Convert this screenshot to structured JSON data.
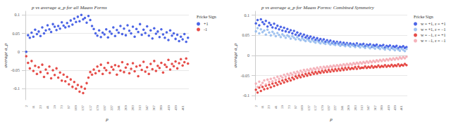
{
  "chart_data": [
    {
      "type": "scatter",
      "title": "p vs average a_p for all Maass Forms",
      "x_label": "p",
      "y_label": "average a_p",
      "legend_title": "Fricke Sign",
      "legend": "right",
      "grid": true,
      "categories": [
        "2",
        null,
        null,
        null,
        "11",
        null,
        null,
        null,
        "23",
        null,
        null,
        null,
        "41",
        null,
        null,
        null,
        "59",
        null,
        null,
        null,
        "73",
        null,
        null,
        null,
        "97",
        null,
        null,
        null,
        "109",
        null,
        null,
        null,
        "137",
        null,
        null,
        null,
        "157",
        null,
        null,
        null,
        "179",
        null,
        null,
        null,
        "197",
        null,
        null,
        null,
        "227",
        null,
        null,
        null,
        "241",
        null,
        null,
        null,
        "269",
        null,
        null,
        null,
        "283",
        null,
        null,
        null,
        "313",
        null,
        null,
        null,
        "347",
        null,
        null,
        null,
        "367",
        null,
        null,
        null,
        "389",
        null,
        null,
        null,
        "419",
        null,
        null,
        null,
        "439",
        null,
        null,
        null,
        "461",
        null,
        null,
        null
      ],
      "ylim": [
        -0.13,
        0.11
      ],
      "yticks": [
        -0.1,
        -0.05,
        0,
        0.05,
        0.1
      ],
      "series": [
        {
          "name": "+1",
          "color": "#1f3fe0",
          "values": [
            0.0,
            0.045,
            0.038,
            0.052,
            0.041,
            0.06,
            0.048,
            0.055,
            0.043,
            0.066,
            0.05,
            0.058,
            0.072,
            0.061,
            0.054,
            0.075,
            0.068,
            0.059,
            0.07,
            0.063,
            0.08,
            0.071,
            0.066,
            0.078,
            0.069,
            0.085,
            0.074,
            0.09,
            0.081,
            0.095,
            0.083,
            0.1,
            0.088,
            0.092,
            0.079,
            0.097,
            0.086,
            0.07,
            0.062,
            0.05,
            0.044,
            0.058,
            0.04,
            0.052,
            0.047,
            0.061,
            0.039,
            0.055,
            0.049,
            0.066,
            0.043,
            0.059,
            0.052,
            0.07,
            0.048,
            0.063,
            0.045,
            0.072,
            0.057,
            0.05,
            0.068,
            0.041,
            0.062,
            0.054,
            0.075,
            0.046,
            0.06,
            0.051,
            0.069,
            0.044,
            0.058,
            0.036,
            0.064,
            0.049,
            0.055,
            0.04,
            0.061,
            0.047,
            0.038,
            0.053,
            0.032,
            0.058,
            0.044,
            0.05,
            0.035,
            0.046,
            0.029,
            0.041,
            0.034,
            0.048,
            0.027,
            0.038
          ]
        },
        {
          "name": "-1",
          "color": "#e0201c",
          "values": [
            -0.012,
            -0.03,
            -0.045,
            -0.025,
            -0.052,
            -0.038,
            -0.06,
            -0.042,
            -0.055,
            -0.035,
            -0.068,
            -0.048,
            -0.058,
            -0.04,
            -0.072,
            -0.05,
            -0.063,
            -0.045,
            -0.07,
            -0.056,
            -0.078,
            -0.062,
            -0.08,
            -0.068,
            -0.088,
            -0.075,
            -0.095,
            -0.082,
            -0.1,
            -0.09,
            -0.108,
            -0.095,
            -0.112,
            -0.1,
            -0.085,
            -0.07,
            -0.055,
            -0.062,
            -0.048,
            -0.058,
            -0.04,
            -0.052,
            -0.035,
            -0.06,
            -0.044,
            -0.05,
            -0.03,
            -0.057,
            -0.041,
            -0.048,
            -0.036,
            -0.062,
            -0.039,
            -0.051,
            -0.028,
            -0.055,
            -0.043,
            -0.034,
            -0.058,
            -0.046,
            -0.031,
            -0.053,
            -0.04,
            -0.066,
            -0.037,
            -0.049,
            -0.027,
            -0.054,
            -0.042,
            -0.06,
            -0.033,
            -0.047,
            -0.025,
            -0.052,
            -0.038,
            -0.044,
            -0.03,
            -0.056,
            -0.035,
            -0.041,
            -0.022,
            -0.048,
            -0.033,
            -0.039,
            -0.026,
            -0.045,
            -0.031,
            -0.02,
            -0.037,
            -0.028,
            -0.018,
            -0.032
          ]
        }
      ]
    },
    {
      "type": "scatter",
      "title": "p vs average a_p for Maass Forms: Combined Symmetry",
      "x_label": "p",
      "y_label": "average a_p",
      "legend_title": "Fricke Sign",
      "legend": "right",
      "grid": true,
      "categories": [
        "2",
        null,
        null,
        null,
        "11",
        null,
        null,
        null,
        "23",
        null,
        null,
        null,
        "41",
        null,
        null,
        null,
        "59",
        null,
        null,
        null,
        "73",
        null,
        null,
        null,
        "97",
        null,
        null,
        null,
        "109",
        null,
        null,
        null,
        "137",
        null,
        null,
        null,
        "157",
        null,
        null,
        null,
        "179",
        null,
        null,
        null,
        "197",
        null,
        null,
        null,
        "227",
        null,
        null,
        null,
        "241",
        null,
        null,
        null,
        "269",
        null,
        null,
        null,
        "283",
        null,
        null,
        null,
        "313",
        null,
        null,
        null,
        "347",
        null,
        null,
        null,
        "367",
        null,
        null,
        null,
        "389",
        null,
        null,
        null,
        "419",
        null,
        null,
        null,
        "439",
        null,
        null,
        null,
        "461",
        null,
        null,
        null
      ],
      "ylim": [
        -0.11,
        0.11
      ],
      "yticks": [
        -0.1,
        -0.05,
        0,
        0.05,
        0.1
      ],
      "series": [
        {
          "name": "w = +1, ε = +1",
          "color": "#1f3fe0",
          "values": [
            0.08,
            0.088,
            0.075,
            0.09,
            0.083,
            0.078,
            0.086,
            0.072,
            0.081,
            0.076,
            0.07,
            0.079,
            0.068,
            0.074,
            0.065,
            0.071,
            0.062,
            0.069,
            0.06,
            0.066,
            0.058,
            0.063,
            0.055,
            0.061,
            0.052,
            0.057,
            0.05,
            0.054,
            0.047,
            0.052,
            0.045,
            0.049,
            0.043,
            0.047,
            0.041,
            0.045,
            0.039,
            0.043,
            0.037,
            0.041,
            0.036,
            0.04,
            0.034,
            0.038,
            0.033,
            0.037,
            0.031,
            0.035,
            0.03,
            0.034,
            0.029,
            0.033,
            0.028,
            0.032,
            0.027,
            0.031,
            0.026,
            0.03,
            0.027,
            0.029,
            0.025,
            0.03,
            0.024,
            0.028,
            0.026,
            0.029,
            0.023,
            0.027,
            0.025,
            0.028,
            0.022,
            0.026,
            0.024,
            0.027,
            0.021,
            0.025,
            0.023,
            0.026,
            0.02,
            0.024,
            0.022,
            0.025,
            0.019,
            0.023,
            0.021,
            0.024,
            0.018,
            0.022,
            0.02,
            0.023,
            0.019,
            0.021
          ]
        },
        {
          "name": "w = +1, ε = −1",
          "color": "#8ab4ec",
          "values": [
            0.06,
            0.068,
            0.055,
            0.065,
            0.058,
            0.062,
            0.052,
            0.064,
            0.057,
            0.05,
            0.059,
            0.054,
            0.048,
            0.056,
            0.051,
            0.046,
            0.053,
            0.049,
            0.044,
            0.05,
            0.047,
            0.042,
            0.048,
            0.044,
            0.04,
            0.046,
            0.041,
            0.038,
            0.043,
            0.039,
            0.036,
            0.041,
            0.037,
            0.034,
            0.039,
            0.035,
            0.032,
            0.037,
            0.033,
            0.03,
            0.035,
            0.031,
            0.029,
            0.034,
            0.03,
            0.027,
            0.032,
            0.028,
            0.026,
            0.031,
            0.027,
            0.024,
            0.029,
            0.026,
            0.023,
            0.028,
            0.025,
            0.022,
            0.027,
            0.024,
            0.021,
            0.026,
            0.023,
            0.02,
            0.025,
            0.022,
            0.019,
            0.024,
            0.021,
            0.018,
            0.023,
            0.02,
            0.017,
            0.022,
            0.019,
            0.016,
            0.021,
            0.018,
            0.015,
            0.02,
            0.017,
            0.014,
            0.019,
            0.016,
            0.013,
            0.018,
            0.015,
            0.012,
            0.017,
            0.014,
            0.011,
            0.016
          ]
        },
        {
          "name": "w = −1, ε = +1",
          "color": "#e0201c",
          "values": [
            -0.085,
            -0.092,
            -0.08,
            -0.088,
            -0.078,
            -0.084,
            -0.075,
            -0.082,
            -0.073,
            -0.079,
            -0.07,
            -0.076,
            -0.068,
            -0.073,
            -0.065,
            -0.07,
            -0.062,
            -0.067,
            -0.06,
            -0.064,
            -0.057,
            -0.062,
            -0.055,
            -0.059,
            -0.052,
            -0.056,
            -0.05,
            -0.054,
            -0.048,
            -0.052,
            -0.046,
            -0.05,
            -0.044,
            -0.048,
            -0.042,
            -0.046,
            -0.041,
            -0.045,
            -0.04,
            -0.043,
            -0.038,
            -0.042,
            -0.037,
            -0.041,
            -0.036,
            -0.04,
            -0.035,
            -0.039,
            -0.034,
            -0.038,
            -0.033,
            -0.037,
            -0.032,
            -0.036,
            -0.031,
            -0.035,
            -0.03,
            -0.034,
            -0.031,
            -0.033,
            -0.029,
            -0.033,
            -0.028,
            -0.032,
            -0.03,
            -0.031,
            -0.027,
            -0.031,
            -0.028,
            -0.03,
            -0.026,
            -0.03,
            -0.027,
            -0.029,
            -0.025,
            -0.029,
            -0.026,
            -0.028,
            -0.024,
            -0.028,
            -0.025,
            -0.027,
            -0.023,
            -0.027,
            -0.024,
            -0.026,
            -0.022,
            -0.026,
            -0.023,
            -0.025,
            -0.021,
            -0.024
          ]
        },
        {
          "name": "w = −1, ε = −1",
          "color": "#f2a0aa",
          "values": [
            -0.07,
            -0.078,
            -0.065,
            -0.074,
            -0.068,
            -0.062,
            -0.072,
            -0.06,
            -0.066,
            -0.058,
            -0.064,
            -0.056,
            -0.061,
            -0.053,
            -0.058,
            -0.051,
            -0.055,
            -0.048,
            -0.053,
            -0.046,
            -0.05,
            -0.044,
            -0.048,
            -0.042,
            -0.046,
            -0.04,
            -0.044,
            -0.038,
            -0.042,
            -0.036,
            -0.04,
            -0.035,
            -0.038,
            -0.033,
            -0.037,
            -0.032,
            -0.035,
            -0.03,
            -0.034,
            -0.029,
            -0.033,
            -0.028,
            -0.031,
            -0.027,
            -0.03,
            -0.026,
            -0.029,
            -0.025,
            -0.028,
            -0.024,
            -0.027,
            -0.023,
            -0.026,
            -0.022,
            -0.025,
            -0.021,
            -0.024,
            -0.02,
            -0.023,
            -0.019,
            -0.022,
            -0.018,
            -0.021,
            -0.017,
            -0.02,
            -0.016,
            -0.019,
            -0.015,
            -0.018,
            -0.014,
            -0.017,
            -0.013,
            -0.016,
            -0.012,
            -0.015,
            -0.011,
            -0.014,
            -0.01,
            -0.013,
            -0.009,
            -0.012,
            -0.008,
            -0.011,
            -0.007,
            -0.01,
            -0.006,
            -0.009,
            -0.005,
            -0.008,
            -0.004,
            -0.007,
            -0.003
          ]
        }
      ]
    }
  ]
}
